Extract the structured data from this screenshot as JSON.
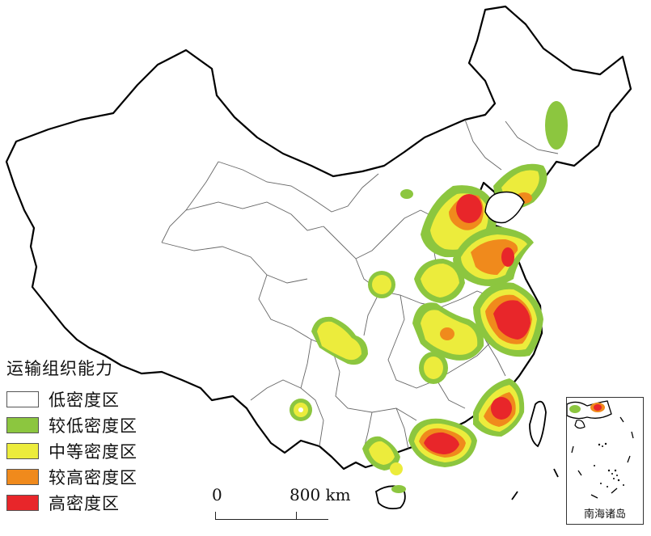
{
  "legend": {
    "title": "运输组织能力",
    "items": [
      {
        "label": "低密度区",
        "color": "#ffffff"
      },
      {
        "label": "较低密度区",
        "color": "#8cc63f"
      },
      {
        "label": "中等密度区",
        "color": "#ecec3c"
      },
      {
        "label": "较高密度区",
        "color": "#f08a1c"
      },
      {
        "label": "高密度区",
        "color": "#e8262a"
      }
    ]
  },
  "scale_bar": {
    "start": "0",
    "end": "800 km"
  },
  "inset": {
    "label": "南海诸岛"
  }
}
